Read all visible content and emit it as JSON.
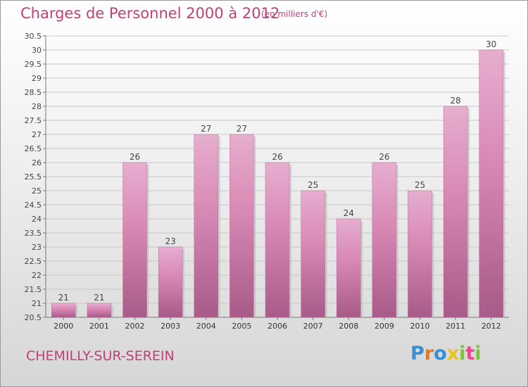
{
  "title": "Charges de Personnel 2000 à 2012",
  "subtitle": "(en milliers d'€)",
  "commune": "CHEMILLY-SUR-SEREIN",
  "brand": {
    "letters": [
      "P",
      "r",
      "o",
      "x",
      "i",
      "t",
      "i"
    ],
    "colors": [
      "#3a8fd0",
      "#e87a1e",
      "#3a8fd0",
      "#e8c21e",
      "#7cc242",
      "#e84a8c",
      "#7cc242"
    ]
  },
  "colors": {
    "bar": "#d98ab5",
    "bar_light": "#e6aecf",
    "bar_dark": "#a85a88",
    "title": "#c04078",
    "grid": "#c8c8c8"
  },
  "chart_data": {
    "type": "bar",
    "categories": [
      "2000",
      "2001",
      "2002",
      "2003",
      "2004",
      "2005",
      "2006",
      "2007",
      "2008",
      "2009",
      "2010",
      "2011",
      "2012"
    ],
    "values": [
      21,
      21,
      26,
      23,
      27,
      27,
      26,
      25,
      24,
      26,
      25,
      28,
      30
    ],
    "title": "Charges de Personnel 2000 à 2012",
    "ylim": [
      20.5,
      30.5
    ],
    "yticks": [
      "20.5",
      "21",
      "21.5",
      "22",
      "22.5",
      "23",
      "23.5",
      "24",
      "24.5",
      "25",
      "25.5",
      "26",
      "26.5",
      "27",
      "27.5",
      "28",
      "28.5",
      "29",
      "29.5",
      "30",
      "30.5"
    ],
    "grid": true,
    "legend": "none"
  }
}
